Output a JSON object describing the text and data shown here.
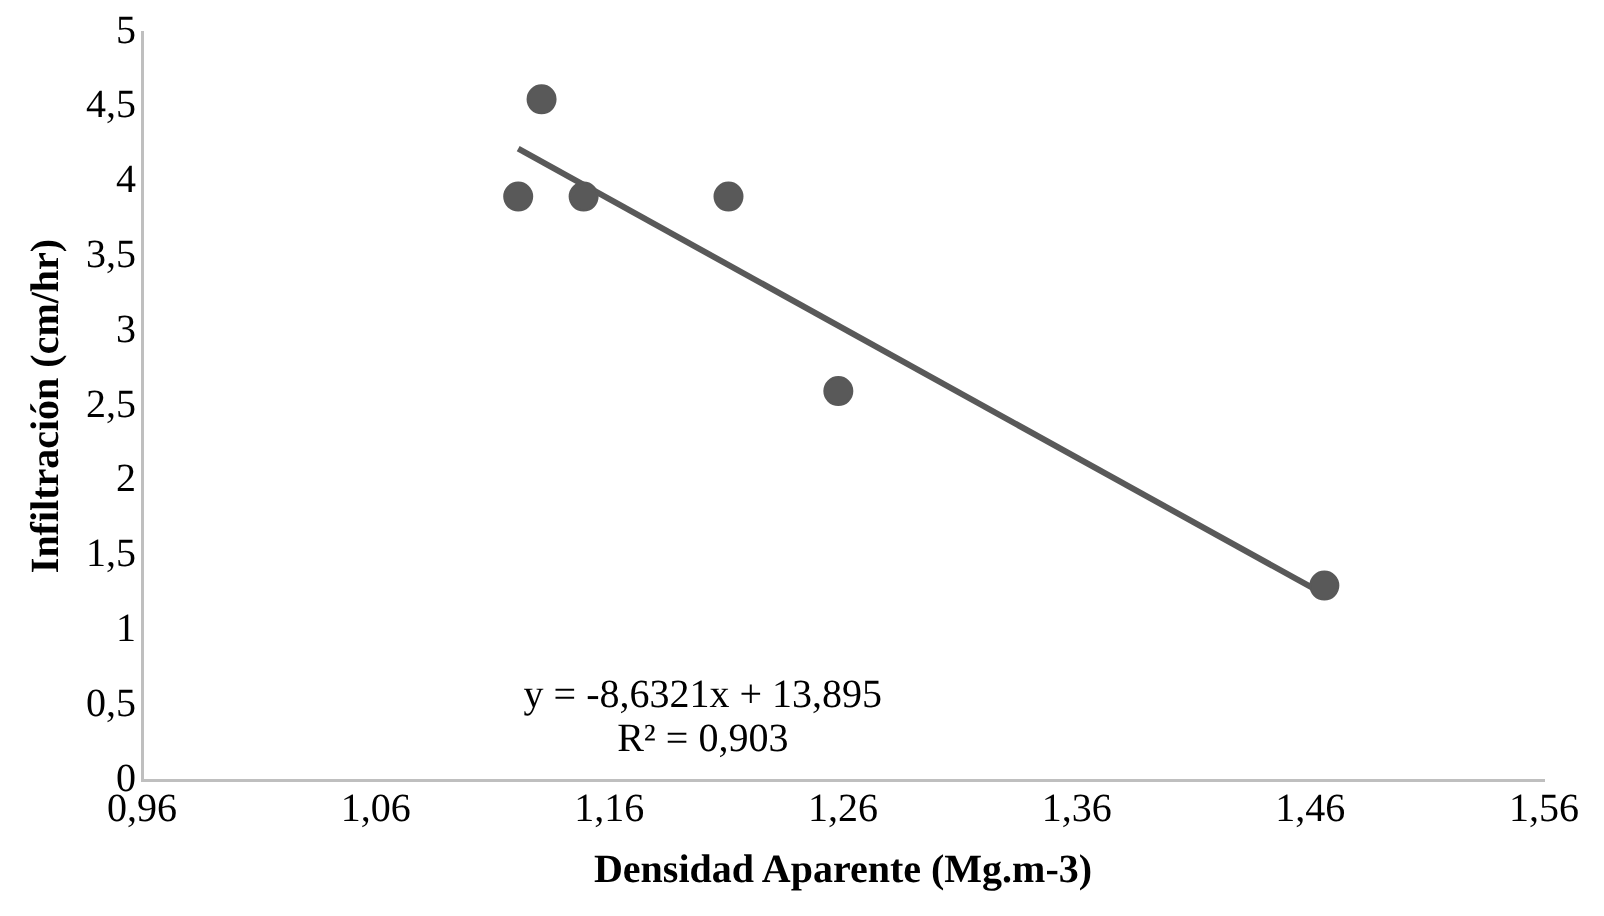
{
  "chart_data": {
    "type": "scatter",
    "xlabel": "Densidad Aparente (Mg.m-3)",
    "ylabel": "Infiltración (cm/hr)",
    "x": [
      1.121,
      1.131,
      1.149,
      1.211,
      1.258,
      1.466
    ],
    "series": [
      {
        "color": "#595959",
        "values": [
          3.9,
          4.55,
          3.9,
          3.9,
          2.6,
          1.3
        ],
        "marker": "circle"
      },
      {
        "type": "line",
        "color": "#595959",
        "x": [
          1.121,
          1.466
        ],
        "values": [
          4.22,
          1.24
        ],
        "marker": "none",
        "line_style": "solid"
      }
    ],
    "xlim": [
      0.96,
      1.56
    ],
    "xticks": [
      {
        "value": 0.96,
        "label": "0,96"
      },
      {
        "value": 1.06,
        "label": "1,06"
      },
      {
        "value": 1.16,
        "label": "1,16"
      },
      {
        "value": 1.26,
        "label": "1,26"
      },
      {
        "value": 1.36,
        "label": "1,36"
      },
      {
        "value": 1.46,
        "label": "1,46"
      },
      {
        "value": 1.56,
        "label": "1,56"
      }
    ],
    "ylim": [
      0,
      5
    ],
    "yticks": [
      0,
      {
        "value": 0.5,
        "label": "0,5"
      },
      1,
      {
        "value": 1.5,
        "label": "1,5"
      },
      2,
      {
        "value": 2.5,
        "label": "2,5"
      },
      3,
      {
        "value": 3.5,
        "label": "3,5"
      },
      4,
      {
        "value": 4.5,
        "label": "4,5"
      },
      5
    ],
    "annotations": [
      "y = -8,6321x + 13,895",
      "R² = 0,903"
    ],
    "grid": false,
    "legend": false
  }
}
